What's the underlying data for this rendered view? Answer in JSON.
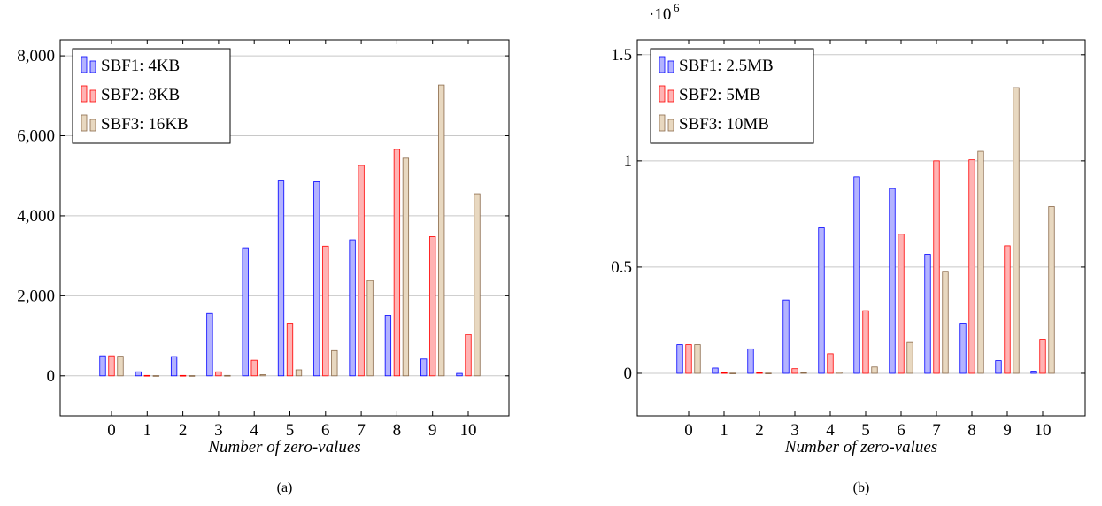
{
  "chart_data": [
    {
      "type": "bar",
      "caption": "(a)",
      "xlabel": "Number of zero-values",
      "ylabel": "",
      "categories": [
        "0",
        "1",
        "2",
        "3",
        "4",
        "5",
        "6",
        "7",
        "8",
        "9",
        "10"
      ],
      "ylim": [
        -1000,
        8400
      ],
      "yticks": [
        0,
        2000,
        4000,
        6000,
        8000
      ],
      "ytick_labels": [
        "0",
        "2,000",
        "4,000",
        "6,000",
        "8,000"
      ],
      "y_scale_label": "",
      "y_scale_exponent": "",
      "grid": "horizontal",
      "legend_position": "top-left",
      "series": [
        {
          "name": "SBF1: 4KB",
          "fill": "#b3b3ff",
          "stroke": "#0000ff",
          "values": [
            500,
            100,
            480,
            1560,
            3200,
            4870,
            4850,
            3400,
            1510,
            420,
            60
          ]
        },
        {
          "name": "SBF2: 8KB",
          "fill": "#ffb3b3",
          "stroke": "#ff0000",
          "values": [
            500,
            10,
            10,
            100,
            390,
            1310,
            3240,
            5260,
            5660,
            3480,
            1030
          ]
        },
        {
          "name": "SBF3: 16KB",
          "fill": "#e8d8c0",
          "stroke": "#8b6a4a",
          "values": [
            490,
            5,
            5,
            10,
            30,
            150,
            630,
            2380,
            5440,
            7270,
            4550
          ]
        }
      ]
    },
    {
      "type": "bar",
      "caption": "(b)",
      "xlabel": "Number of zero-values",
      "ylabel": "",
      "categories": [
        "0",
        "1",
        "2",
        "3",
        "4",
        "5",
        "6",
        "7",
        "8",
        "9",
        "10"
      ],
      "ylim": [
        -0.2,
        1.57
      ],
      "yticks": [
        0,
        0.5,
        1,
        1.5
      ],
      "ytick_labels": [
        "0",
        "0.5",
        "1",
        "1.5"
      ],
      "y_scale_label": "·10",
      "y_scale_exponent": "6",
      "grid": "horizontal",
      "legend_position": "top-left",
      "series": [
        {
          "name": "SBF1: 2.5MB",
          "fill": "#b3b3ff",
          "stroke": "#0000ff",
          "values": [
            0.135,
            0.025,
            0.115,
            0.345,
            0.685,
            0.925,
            0.87,
            0.56,
            0.235,
            0.06,
            0.01
          ]
        },
        {
          "name": "SBF2: 5MB",
          "fill": "#ffb3b3",
          "stroke": "#ff0000",
          "values": [
            0.135,
            0.003,
            0.003,
            0.022,
            0.092,
            0.295,
            0.655,
            1.0,
            1.005,
            0.6,
            0.16
          ]
        },
        {
          "name": "SBF3: 10MB",
          "fill": "#e8d8c0",
          "stroke": "#8b6a4a",
          "values": [
            0.135,
            0.001,
            0.001,
            0.003,
            0.006,
            0.03,
            0.145,
            0.48,
            1.045,
            1.345,
            0.785
          ]
        }
      ]
    }
  ]
}
